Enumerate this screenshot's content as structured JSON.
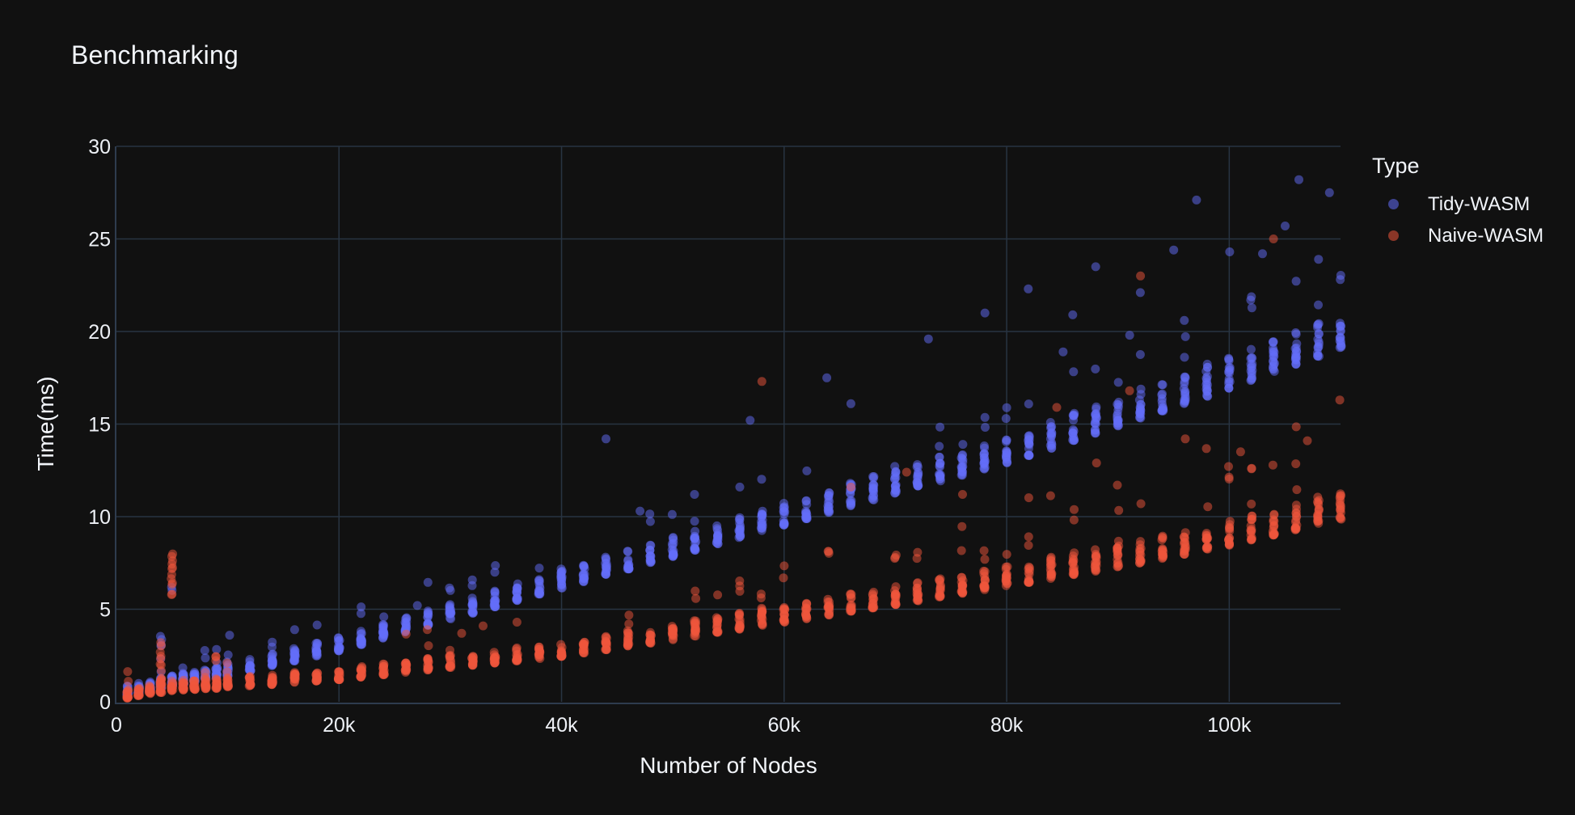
{
  "chart_data": {
    "type": "scatter",
    "title": "Benchmarking",
    "xlabel": "Number of Nodes",
    "ylabel": "Time(ms)",
    "legend_title": "Type",
    "legend_position": "right",
    "xlim": [
      0,
      110000
    ],
    "ylim": [
      0,
      30
    ],
    "grid": true,
    "background_color": "#111111",
    "grid_color": "#283442",
    "axis_line_color": "#2e3c4e",
    "font_color": "#eef1f6",
    "marker_radius": 5.5,
    "seed": 20,
    "x_ticks": [
      {
        "value": 0,
        "label": "0"
      },
      {
        "value": 20000,
        "label": "20k"
      },
      {
        "value": 40000,
        "label": "40k"
      },
      {
        "value": 60000,
        "label": "60k"
      },
      {
        "value": 80000,
        "label": "80k"
      },
      {
        "value": 100000,
        "label": "100k"
      }
    ],
    "y_ticks": [
      {
        "value": 0,
        "label": "0"
      },
      {
        "value": 5,
        "label": "5"
      },
      {
        "value": 10,
        "label": "10"
      },
      {
        "value": 15,
        "label": "15"
      },
      {
        "value": 20,
        "label": "20"
      },
      {
        "value": 25,
        "label": "25"
      },
      {
        "value": 30,
        "label": "30"
      }
    ],
    "x_columns": [
      {
        "from": 1000,
        "to": 10000,
        "step": 1000
      },
      {
        "from": 12000,
        "to": 110000,
        "step": 2000
      }
    ],
    "series": [
      {
        "name": "Tidy-WASM",
        "color": "#636efa",
        "opacity": 0.5,
        "runs": 16,
        "trend": [
          [
            0,
            0.5
          ],
          [
            5,
            1.15
          ],
          [
            10,
            1.7
          ],
          [
            20,
            3.05
          ],
          [
            30,
            4.75
          ],
          [
            40,
            6.45
          ],
          [
            50,
            8.15
          ],
          [
            60,
            9.85
          ],
          [
            70,
            11.55
          ],
          [
            80,
            13.2
          ],
          [
            90,
            15.2
          ],
          [
            100,
            17.2
          ],
          [
            105,
            18.3
          ],
          [
            110,
            19.4
          ]
        ],
        "jitter": {
          "lo": -0.3,
          "flat": 0.5,
          "base_frac": 0.07,
          "skew": 1.6
        },
        "stragglers": {
          "prob": 0.5,
          "max_count": 2,
          "min": 0.35,
          "flat": 0.9,
          "base_frac": 0.18,
          "boost_after": 55,
          "boost": 1.4
        },
        "extra_clusters": [
          {
            "x": 4000,
            "count": 4,
            "min": 3.0,
            "max": 3.65
          },
          {
            "x": 5000,
            "count": 2,
            "min": 5.2,
            "max": 6.3
          }
        ],
        "outliers": [
          [
            10.2,
            3.6
          ],
          [
            27,
            5.2
          ],
          [
            34,
            7.0
          ],
          [
            44,
            14.2
          ],
          [
            47,
            10.3
          ],
          [
            52,
            11.2
          ],
          [
            57,
            15.2
          ],
          [
            63.8,
            17.5
          ],
          [
            66,
            16.1
          ],
          [
            73,
            19.6
          ],
          [
            78,
            21.0
          ],
          [
            82,
            22.3
          ],
          [
            85,
            18.9
          ],
          [
            86,
            20.9
          ],
          [
            88,
            23.5
          ],
          [
            91,
            19.8
          ],
          [
            92,
            22.1
          ],
          [
            95,
            24.4
          ],
          [
            96,
            20.6
          ],
          [
            97,
            27.1
          ],
          [
            100,
            24.3
          ],
          [
            102,
            21.7
          ],
          [
            103,
            24.2
          ],
          [
            105,
            25.7
          ],
          [
            106.3,
            28.2
          ],
          [
            108,
            23.9
          ],
          [
            109,
            27.5
          ]
        ]
      },
      {
        "name": "Naive-WASM",
        "color": "#ef553b",
        "opacity": 0.5,
        "runs": 16,
        "trend": [
          [
            0,
            0.35
          ],
          [
            5,
            0.85
          ],
          [
            10,
            1.0
          ],
          [
            20,
            1.45
          ],
          [
            30,
            2.1
          ],
          [
            40,
            2.7
          ],
          [
            50,
            3.6
          ],
          [
            60,
            4.55
          ],
          [
            70,
            5.5
          ],
          [
            80,
            6.5
          ],
          [
            90,
            7.5
          ],
          [
            100,
            8.7
          ],
          [
            105,
            9.4
          ],
          [
            110,
            10.1
          ]
        ],
        "jitter": {
          "lo": -0.25,
          "flat": 0.45,
          "base_frac": 0.1,
          "skew": 1.6
        },
        "stragglers": {
          "prob": 0.45,
          "max_count": 3,
          "min": 0.3,
          "flat": 0.7,
          "base_frac": 0.5,
          "boost_after": 45,
          "boost": 1.7
        },
        "extra_clusters": [
          {
            "x": 4000,
            "count": 14,
            "min": 0.9,
            "max": 3.3
          },
          {
            "x": 5000,
            "count": 12,
            "min": 4.7,
            "max": 8.0
          }
        ],
        "outliers": [
          [
            28,
            3.9
          ],
          [
            31,
            3.7
          ],
          [
            33,
            4.1
          ],
          [
            36,
            4.3
          ],
          [
            58,
            17.3
          ],
          [
            66,
            11.6
          ],
          [
            71,
            12.4
          ],
          [
            76,
            11.2
          ],
          [
            84.5,
            15.9
          ],
          [
            88,
            12.9
          ],
          [
            91,
            16.8
          ],
          [
            92,
            23.0
          ],
          [
            96,
            14.2
          ],
          [
            101,
            13.5
          ],
          [
            104,
            25.0
          ],
          [
            107,
            14.1
          ],
          [
            110,
            16.3
          ]
        ]
      }
    ]
  }
}
